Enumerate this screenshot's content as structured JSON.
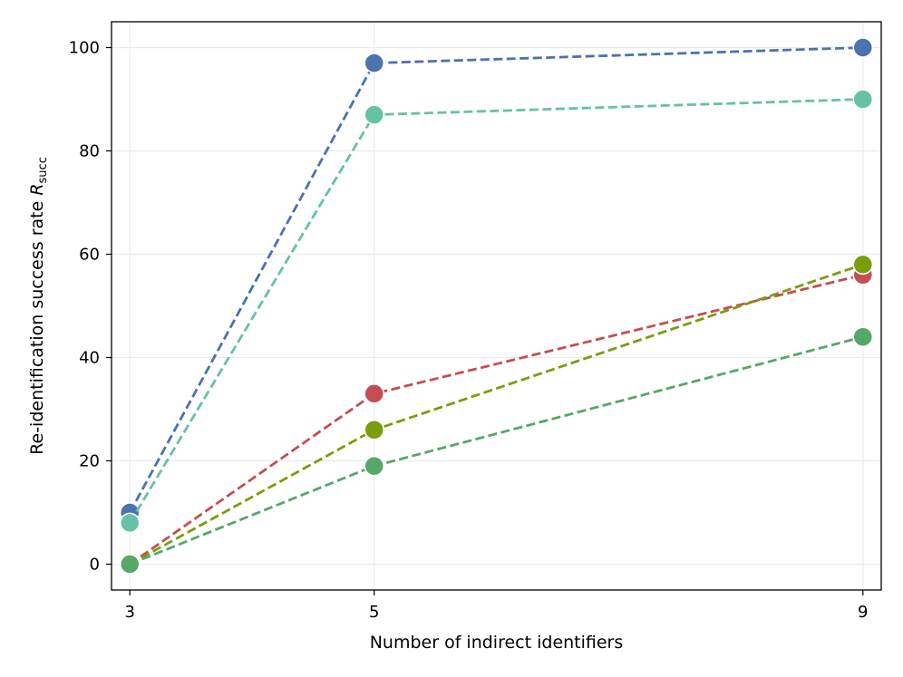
{
  "chart_data": {
    "type": "line",
    "title": "",
    "xlabel": "Number of indirect identifiers",
    "ylabel_prefix": "Re-identification success rate ",
    "ylabel_var": "R",
    "ylabel_sub": "succ",
    "x": [
      3,
      5,
      9
    ],
    "x_tick_labels": [
      "3",
      "5",
      "9"
    ],
    "xlim": [
      2.85,
      9.15
    ],
    "ylim": [
      -5,
      105
    ],
    "y_ticks": [
      0,
      20,
      40,
      60,
      80,
      100
    ],
    "grid": true,
    "line_style": "dashed",
    "series": [
      {
        "name": "series-blue",
        "color": "#4c72b0",
        "values": [
          10,
          97,
          100
        ]
      },
      {
        "name": "series-teal",
        "color": "#66c2a5",
        "values": [
          8,
          87,
          90
        ]
      },
      {
        "name": "series-red",
        "color": "#c44e52",
        "values": [
          0,
          33,
          56
        ]
      },
      {
        "name": "series-olive",
        "color": "#7a9e0a",
        "values": [
          0,
          26,
          58
        ]
      },
      {
        "name": "series-green",
        "color": "#55a868",
        "values": [
          0,
          19,
          44
        ]
      }
    ]
  }
}
